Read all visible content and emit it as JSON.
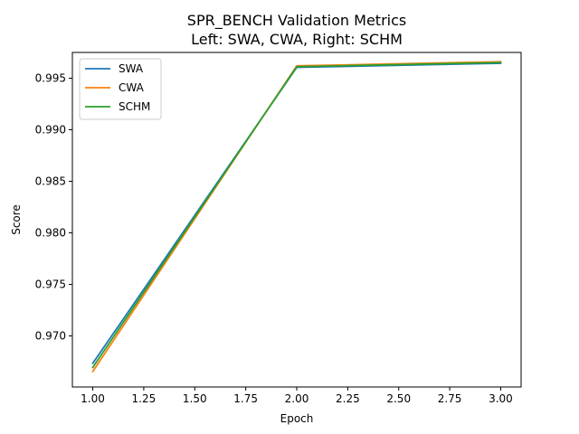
{
  "chart_data": {
    "type": "line",
    "title": "SPR_BENCH Validation Metrics",
    "subtitle": "Left: SWA, CWA, Right: SCHM",
    "xlabel": "Epoch",
    "ylabel": "Score",
    "x": [
      1.0,
      2.0,
      3.0
    ],
    "series": [
      {
        "name": "SWA",
        "color": "#1f77b4",
        "values": [
          0.96735,
          0.99605,
          0.99645
        ]
      },
      {
        "name": "CWA",
        "color": "#ff7f0e",
        "values": [
          0.96655,
          0.9962,
          0.9966
        ]
      },
      {
        "name": "SCHM",
        "color": "#2ca02c",
        "values": [
          0.96695,
          0.99612,
          0.99652
        ]
      }
    ],
    "xlim": [
      0.9,
      3.1
    ],
    "ylim": [
      0.96505,
      0.9975
    ],
    "xticks": [
      1.0,
      1.25,
      1.5,
      1.75,
      2.0,
      2.25,
      2.5,
      2.75,
      3.0
    ],
    "xtick_labels": [
      "1.00",
      "1.25",
      "1.50",
      "1.75",
      "2.00",
      "2.25",
      "2.50",
      "2.75",
      "3.00"
    ],
    "yticks": [
      0.97,
      0.975,
      0.98,
      0.985,
      0.99,
      0.995
    ],
    "ytick_labels": [
      "0.970",
      "0.975",
      "0.980",
      "0.985",
      "0.990",
      "0.995"
    ],
    "grid": false,
    "legend": "upper-left"
  }
}
